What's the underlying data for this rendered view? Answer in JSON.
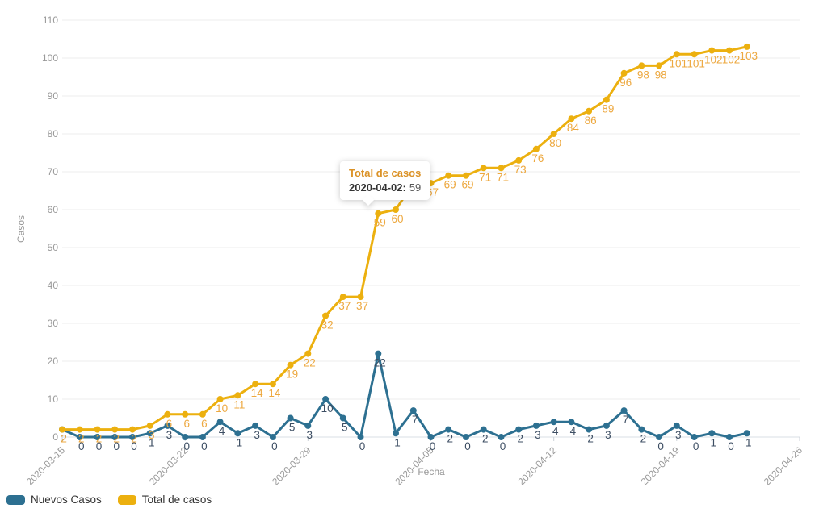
{
  "legend": {
    "items": [
      {
        "label": "Nuevos Casos",
        "color": "#2d7091"
      },
      {
        "label": "Total de casos",
        "color": "#ecb00f"
      }
    ]
  },
  "tooltip": {
    "title": "Total de casos",
    "date_label": "2020-04-02:",
    "value": "59"
  },
  "axis_colors": {
    "tick_text": "#999999",
    "grid": "#ececec",
    "axis_line": "#d9dfe5",
    "tick_mark": "#ccd2d8"
  },
  "chart_data": {
    "type": "line",
    "title": "",
    "xlabel": "Fecha",
    "ylabel": "Casos",
    "ylim": [
      0,
      110
    ],
    "y_ticks": [
      0,
      10,
      20,
      30,
      40,
      50,
      60,
      70,
      80,
      90,
      100,
      110
    ],
    "grid": true,
    "legend_position": "bottom-left",
    "x_slots": 42,
    "x_tick_indices": [
      0,
      7,
      14,
      21,
      28,
      35,
      42
    ],
    "x_tick_labels": [
      "2020-03-15",
      "2020-03-22",
      "2020-03-29",
      "2020-04-05",
      "2020-04-12",
      "2020-04-19",
      "2020-04-26"
    ],
    "x": [
      "2020-03-15",
      "2020-03-16",
      "2020-03-17",
      "2020-03-18",
      "2020-03-19",
      "2020-03-20",
      "2020-03-21",
      "2020-03-22",
      "2020-03-23",
      "2020-03-24",
      "2020-03-25",
      "2020-03-26",
      "2020-03-27",
      "2020-03-28",
      "2020-03-29",
      "2020-03-30",
      "2020-03-31",
      "2020-04-01",
      "2020-04-02",
      "2020-04-03",
      "2020-04-04",
      "2020-04-05",
      "2020-04-06",
      "2020-04-07",
      "2020-04-08",
      "2020-04-09",
      "2020-04-10",
      "2020-04-11",
      "2020-04-12",
      "2020-04-13",
      "2020-04-14",
      "2020-04-15",
      "2020-04-16",
      "2020-04-17",
      "2020-04-18",
      "2020-04-19",
      "2020-04-20",
      "2020-04-21",
      "2020-04-22",
      "2020-04-23"
    ],
    "series": [
      {
        "name": "Nuevos Casos",
        "color": "#2d7091",
        "label_color": "#3d4e63",
        "values": [
          2,
          0,
          0,
          0,
          0,
          1,
          3,
          0,
          0,
          4,
          1,
          3,
          0,
          5,
          3,
          10,
          5,
          0,
          22,
          1,
          7,
          0,
          2,
          0,
          2,
          0,
          2,
          3,
          4,
          4,
          2,
          3,
          7,
          2,
          0,
          3,
          0,
          1,
          0,
          1
        ]
      },
      {
        "name": "Total de casos",
        "color": "#ecb00f",
        "label_color": "#eda83f",
        "values": [
          2,
          2,
          2,
          2,
          2,
          3,
          6,
          6,
          6,
          10,
          11,
          14,
          14,
          19,
          22,
          32,
          37,
          37,
          59,
          60,
          67,
          67,
          69,
          69,
          71,
          71,
          73,
          76,
          80,
          84,
          86,
          89,
          96,
          98,
          98,
          101,
          101,
          102,
          102,
          103
        ]
      }
    ],
    "tooltip_point": {
      "series": "Total de casos",
      "x": "2020-04-02",
      "value": 59
    }
  }
}
